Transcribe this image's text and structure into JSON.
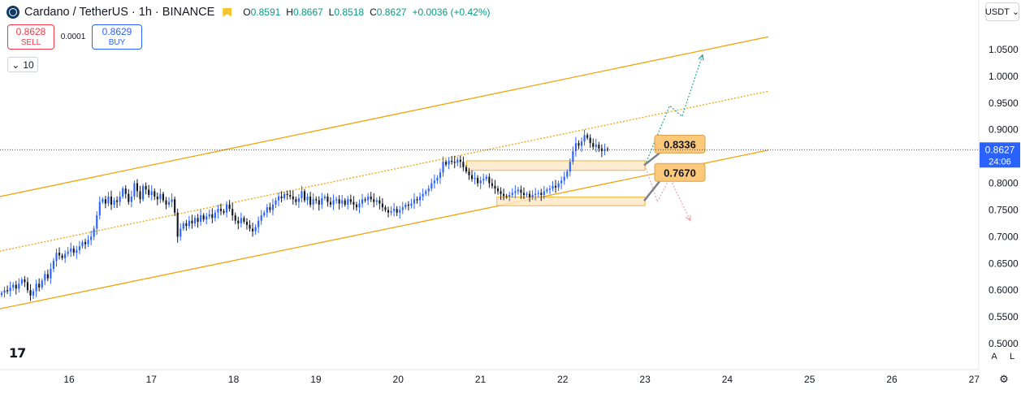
{
  "header": {
    "title": "Cardano / TetherUS · 1h · BINANCE",
    "ohlc": [
      {
        "k": "O",
        "v": "0.8591"
      },
      {
        "k": "H",
        "v": "0.8667"
      },
      {
        "k": "L",
        "v": "0.8518"
      },
      {
        "k": "C",
        "v": "0.8627"
      },
      {
        "k": "",
        "v": "+0.0036 (+0.42%)"
      }
    ]
  },
  "trade": {
    "sell_price": "0.8628",
    "sell_label": "SELL",
    "spread": "0.0001",
    "buy_price": "0.8629",
    "buy_label": "BUY"
  },
  "indicator_toggle": "10",
  "currency_selector": "USDT",
  "current_price": {
    "value": "0.8627",
    "countdown": "24:06"
  },
  "scale_buttons": {
    "auto": "A",
    "log": "L"
  },
  "colors": {
    "up": "#2962ff",
    "down": "#131722",
    "channel": "#f0a30a",
    "zone": "#fde7c3",
    "callout": "#fcc97a",
    "projection_up": "#26a69a",
    "projection_down": "#f2a0a8"
  },
  "chart_data": {
    "type": "candlestick",
    "ylim": [
      0.5,
      1.07
    ],
    "y_ticks": [
      "1.0500",
      "1.0000",
      "0.9500",
      "0.9000",
      "0.8500",
      "0.8000",
      "0.7500",
      "0.7000",
      "0.6500",
      "0.6000",
      "0.5500",
      "0.5000"
    ],
    "x_ticks": [
      "16",
      "17",
      "18",
      "19",
      "20",
      "21",
      "22",
      "23",
      "24",
      "25",
      "26",
      "27"
    ],
    "annotations": [
      {
        "label": "0.8336",
        "value": 0.8336
      },
      {
        "label": "0.7670",
        "value": 0.767
      }
    ],
    "zones": [
      {
        "day_start": 20.83,
        "day_end": 23.0,
        "low": 0.824,
        "high": 0.842
      },
      {
        "day_start": 21.2,
        "day_end": 23.0,
        "low": 0.758,
        "high": 0.774
      }
    ],
    "channel": {
      "upper": [
        [
          15.0,
          0.77
        ],
        [
          24.5,
          1.074
        ]
      ],
      "middle": [
        [
          15.0,
          0.668
        ],
        [
          24.5,
          0.972
        ]
      ],
      "lower": [
        [
          15.0,
          0.56
        ],
        [
          24.5,
          0.862
        ]
      ]
    },
    "projection_up": [
      [
        23.0,
        0.834
      ],
      [
        23.3,
        0.945
      ],
      [
        23.45,
        0.925
      ],
      [
        23.7,
        1.04
      ]
    ],
    "projection_down": [
      [
        23.0,
        0.834
      ],
      [
        23.15,
        0.765
      ],
      [
        23.3,
        0.81
      ],
      [
        23.55,
        0.73
      ]
    ],
    "candles_close": [
      0.595,
      0.6,
      0.598,
      0.605,
      0.61,
      0.603,
      0.612,
      0.62,
      0.615,
      0.6,
      0.59,
      0.598,
      0.612,
      0.605,
      0.618,
      0.63,
      0.622,
      0.64,
      0.655,
      0.67,
      0.665,
      0.66,
      0.668,
      0.672,
      0.678,
      0.67,
      0.675,
      0.682,
      0.69,
      0.686,
      0.694,
      0.7,
      0.715,
      0.74,
      0.765,
      0.77,
      0.762,
      0.775,
      0.76,
      0.768,
      0.765,
      0.775,
      0.79,
      0.78,
      0.765,
      0.775,
      0.8,
      0.785,
      0.77,
      0.795,
      0.788,
      0.778,
      0.785,
      0.775,
      0.77,
      0.78,
      0.768,
      0.76,
      0.765,
      0.77,
      0.745,
      0.7,
      0.715,
      0.725,
      0.72,
      0.73,
      0.725,
      0.735,
      0.728,
      0.74,
      0.732,
      0.738,
      0.742,
      0.735,
      0.745,
      0.752,
      0.748,
      0.745,
      0.76,
      0.752,
      0.74,
      0.73,
      0.725,
      0.735,
      0.728,
      0.722,
      0.715,
      0.71,
      0.718,
      0.73,
      0.74,
      0.745,
      0.755,
      0.75,
      0.76,
      0.768,
      0.775,
      0.772,
      0.78,
      0.778,
      0.775,
      0.77,
      0.765,
      0.772,
      0.785,
      0.768,
      0.775,
      0.76,
      0.77,
      0.768,
      0.76,
      0.772,
      0.775,
      0.765,
      0.76,
      0.768,
      0.77,
      0.762,
      0.768,
      0.76,
      0.77,
      0.765,
      0.76,
      0.755,
      0.762,
      0.77,
      0.768,
      0.775,
      0.77,
      0.765,
      0.768,
      0.762,
      0.755,
      0.75,
      0.745,
      0.748,
      0.752,
      0.745,
      0.75,
      0.755,
      0.76,
      0.758,
      0.762,
      0.77,
      0.768,
      0.775,
      0.78,
      0.785,
      0.79,
      0.8,
      0.805,
      0.81,
      0.82,
      0.84,
      0.835,
      0.842,
      0.84,
      0.838,
      0.844,
      0.84,
      0.83,
      0.822,
      0.815,
      0.808,
      0.81,
      0.8,
      0.805,
      0.808,
      0.812,
      0.8,
      0.795,
      0.79,
      0.785,
      0.78,
      0.776,
      0.775,
      0.778,
      0.782,
      0.785,
      0.788,
      0.782,
      0.778,
      0.78,
      0.774,
      0.778,
      0.78,
      0.782,
      0.778,
      0.785,
      0.788,
      0.79,
      0.795,
      0.792,
      0.8,
      0.805,
      0.812,
      0.822,
      0.84,
      0.86,
      0.875,
      0.87,
      0.878,
      0.89,
      0.885,
      0.875,
      0.868,
      0.872,
      0.865,
      0.86,
      0.864,
      0.863
    ]
  }
}
